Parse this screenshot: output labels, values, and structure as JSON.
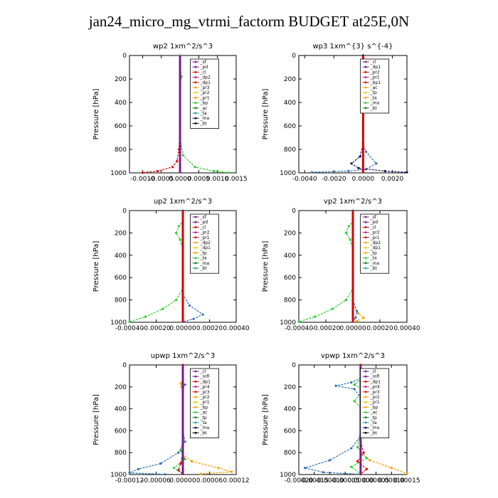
{
  "title": "jan24_micro_mg_vtrmi_factorm  BUDGET at25E,0N",
  "colors": {
    "red": "#dd0000",
    "purple": "#7a1a8c",
    "orange": "#f5a000",
    "yellow": "#e8d000",
    "green": "#2ecc2e",
    "darkgreen": "#1a7a1a",
    "blue": "#2a6fb8",
    "navy": "#10105a",
    "teal": "#1a9a9a",
    "cyan": "#18d8f0",
    "magenta": "#c01890",
    "black": "#000000"
  },
  "chart_data": [
    {
      "type": "line",
      "title": "wp2   1xm^2/s^3",
      "ylabel": "Pressure  [hPa]",
      "ylim": [
        1000,
        0
      ],
      "yticks": [
        "0",
        "200",
        "400",
        "600",
        "800",
        "1000"
      ],
      "xlim": [
        -0.00135,
        0.0015
      ],
      "xticks": [
        "-0.0010",
        "-0.0005",
        "0.0000",
        "0.0005",
        "0.0010",
        "0.0015"
      ],
      "legend": [
        "_sf",
        "_pd",
        "_cl",
        "_dp2",
        "_dp1",
        "_pr3",
        "_pr2",
        "_pr1",
        "_bp",
        "_ac",
        "_ta",
        "_ma",
        "_bt"
      ],
      "series": [
        {
          "name": "_pd",
          "color": "red",
          "values": [
            [
              0,
              0
            ],
            [
              0,
              600
            ],
            [
              -3e-05,
              800
            ],
            [
              -8e-05,
              900
            ],
            [
              -0.0002,
              950
            ],
            [
              -0.0006,
              985
            ],
            [
              -0.001,
              998
            ]
          ]
        },
        {
          "name": "_bp",
          "color": "green",
          "values": [
            [
              0,
              0
            ],
            [
              0,
              100
            ],
            [
              4e-05,
              180
            ],
            [
              0,
              260
            ],
            [
              0,
              700
            ],
            [
              8e-05,
              850
            ],
            [
              0.0004,
              950
            ],
            [
              0.0009,
              985
            ],
            [
              0.0013,
              998
            ]
          ]
        },
        {
          "name": "_cl",
          "color": "purple",
          "values": [
            [
              0,
              0
            ],
            [
              0,
              1000
            ]
          ]
        }
      ]
    },
    {
      "type": "line",
      "title": "wp3   1xm^{3} s^{-4}",
      "ylabel": "Pressure  [hPa]",
      "ylim": [
        1000,
        0
      ],
      "yticks": [
        "0",
        "200",
        "400",
        "600",
        "800",
        "1000"
      ],
      "xlim": [
        -0.0044,
        0.003
      ],
      "xticks": [
        "-0.0040",
        "-0.0020",
        "0.0000",
        "0.0020"
      ],
      "legend": [
        "_cl",
        "_dp1",
        "_pr2",
        "_pr1",
        "_bp1",
        "_ac",
        "_tp",
        "_ta",
        "_ma",
        "_bt"
      ],
      "series": [
        {
          "name": "_ac",
          "color": "blue",
          "values": [
            [
              0,
              0
            ],
            [
              0,
              750
            ],
            [
              0.0002,
              820
            ],
            [
              0.0009,
              920
            ],
            [
              0.0002,
              970
            ],
            [
              -0.001,
              985
            ],
            [
              -0.0035,
              995
            ]
          ]
        },
        {
          "name": "_tp",
          "color": "navy",
          "values": [
            [
              0,
              0
            ],
            [
              0,
              750
            ],
            [
              -0.0002,
              860
            ],
            [
              -0.0008,
              920
            ],
            [
              -0.0003,
              960
            ],
            [
              0.0015,
              985
            ],
            [
              0.003,
              995
            ]
          ]
        },
        {
          "name": "_cl",
          "color": "red",
          "values": [
            [
              0,
              0
            ],
            [
              0,
              1000
            ]
          ]
        }
      ]
    },
    {
      "type": "line",
      "title": "up2   1xm^2/s^3",
      "ylabel": "Pressure  [hPa]",
      "ylim": [
        1000,
        0
      ],
      "yticks": [
        "0",
        "200",
        "400",
        "600",
        "800",
        "1000"
      ],
      "xlim": [
        -0.0004,
        0.0004
      ],
      "xticks": [
        "-0.00040",
        "-0.00020",
        "0.00000",
        "0.00020",
        "0.00040"
      ],
      "legend": [
        "_sf",
        "_pd",
        "_cl",
        "_pr2",
        "_pr1",
        "_dp2",
        "_dp1",
        "_tp",
        "_ta",
        "_ma",
        "_bt"
      ],
      "series": [
        {
          "name": "_dp1",
          "color": "green",
          "values": [
            [
              0,
              0
            ],
            [
              0,
              100
            ],
            [
              -3e-05,
              140
            ],
            [
              -5e-05,
              200
            ],
            [
              -2e-05,
              260
            ],
            [
              0,
              350
            ],
            [
              0,
              700
            ],
            [
              -5e-05,
              800
            ],
            [
              -0.00015,
              880
            ],
            [
              -0.00028,
              950
            ],
            [
              -0.0004,
              995
            ]
          ]
        },
        {
          "name": "_tp",
          "color": "blue",
          "values": [
            [
              0,
              0
            ],
            [
              0,
              750
            ],
            [
              5e-05,
              850
            ],
            [
              0.00015,
              930
            ],
            [
              8e-05,
              970
            ],
            [
              0,
              995
            ]
          ]
        },
        {
          "name": "_cl",
          "color": "red",
          "values": [
            [
              0,
              0
            ],
            [
              0,
              1000
            ]
          ]
        }
      ]
    },
    {
      "type": "line",
      "title": "vp2   1xm^2/s^3",
      "ylabel": "Pressure  [hPa]",
      "ylim": [
        1000,
        0
      ],
      "yticks": [
        "0",
        "200",
        "400",
        "600",
        "800",
        "1000"
      ],
      "xlim": [
        -0.0004,
        0.0004
      ],
      "xticks": [
        "-0.00040",
        "-0.00020",
        "0.00000",
        "0.00020",
        "0.00040"
      ],
      "legend": [
        "_sf",
        "_pd",
        "_cl",
        "_pr2",
        "_pr1",
        "_dp2",
        "_dp1",
        "_tp",
        "_ta",
        "_ma",
        "_bt"
      ],
      "series": [
        {
          "name": "_dp1",
          "color": "green",
          "values": [
            [
              0,
              0
            ],
            [
              0,
              100
            ],
            [
              -3e-05,
              140
            ],
            [
              -5e-05,
              200
            ],
            [
              -2e-05,
              260
            ],
            [
              0,
              350
            ],
            [
              0,
              700
            ],
            [
              -5e-05,
              800
            ],
            [
              -0.00015,
              880
            ],
            [
              -0.00028,
              950
            ],
            [
              -0.0004,
              995
            ]
          ]
        },
        {
          "name": "_pr2",
          "color": "orange",
          "values": [
            [
              0,
              0
            ],
            [
              0,
              850
            ],
            [
              4e-05,
              920
            ],
            [
              8e-05,
              960
            ],
            [
              3e-05,
              990
            ]
          ]
        },
        {
          "name": "_tp",
          "color": "blue",
          "values": [
            [
              0,
              0
            ],
            [
              0,
              800
            ],
            [
              3e-05,
              900
            ],
            [
              2e-05,
              960
            ],
            [
              0,
              995
            ]
          ]
        },
        {
          "name": "_cl",
          "color": "red",
          "values": [
            [
              0,
              0
            ],
            [
              0,
              1000
            ]
          ]
        }
      ]
    },
    {
      "type": "line",
      "title": "upwp   1xm^2/s^3",
      "ylabel": "Pressure  [hPa]",
      "ylim": [
        1000,
        0
      ],
      "yticks": [
        "0",
        "200",
        "400",
        "600",
        "800",
        "1000"
      ],
      "xlim": [
        -0.00012,
        0.00012
      ],
      "xticks": [
        "-0.00012",
        "-0.00006",
        "0.00000",
        "0.00006",
        "0.00012"
      ],
      "legend": [
        "_cl",
        "_mfl",
        "_dp1",
        "_pr4",
        "_pr3",
        "_pr2",
        "_pr1",
        "_bp",
        "_ac",
        "_tp",
        "_ta",
        "_ma",
        "_bt"
      ],
      "series": [
        {
          "name": "_pr2",
          "color": "orange",
          "values": [
            [
              0,
              0
            ],
            [
              0,
              140
            ],
            [
              -5e-06,
              170
            ],
            [
              -3e-06,
              200
            ],
            [
              0,
              250
            ],
            [
              0,
              820
            ],
            [
              2e-05,
              880
            ],
            [
              8e-05,
              940
            ],
            [
              0.00011,
              975
            ],
            [
              4e-05,
              995
            ]
          ]
        },
        {
          "name": "_ac",
          "color": "blue",
          "values": [
            [
              0,
              0
            ],
            [
              0,
              150
            ],
            [
              5e-06,
              180
            ],
            [
              0,
              220
            ],
            [
              0,
              600
            ],
            [
              5e-06,
              700
            ],
            [
              -1e-05,
              800
            ],
            [
              -5e-05,
              900
            ],
            [
              -0.0001,
              950
            ],
            [
              -0.00012,
              985
            ],
            [
              -4e-05,
              998
            ]
          ]
        },
        {
          "name": "_bp",
          "color": "green",
          "values": [
            [
              0,
              0
            ],
            [
              0,
              700
            ],
            [
              -5e-06,
              780
            ],
            [
              5e-06,
              860
            ],
            [
              -2e-05,
              940
            ],
            [
              0,
              995
            ]
          ]
        },
        {
          "name": "_dp1",
          "color": "red",
          "values": [
            [
              0,
              0
            ],
            [
              0,
              800
            ],
            [
              -5e-06,
              900
            ],
            [
              -1e-05,
              960
            ],
            [
              0,
              995
            ]
          ]
        },
        {
          "name": "_cl",
          "color": "purple",
          "values": [
            [
              0,
              0
            ],
            [
              0,
              1000
            ]
          ]
        }
      ]
    },
    {
      "type": "line",
      "title": "vpwp   1xm^2/s^3",
      "ylabel": "Pressure  [hPa]",
      "ylim": [
        1000,
        0
      ],
      "yticks": [
        "0",
        "200",
        "400",
        "600",
        "800",
        "1000"
      ],
      "xlim": [
        -0.0002,
        0.00015
      ],
      "xticks": [
        "-0.00020",
        "-0.00015",
        "-0.00010",
        "-0.00005",
        "0.00000",
        "0.00005",
        "0.00010",
        "0.00015"
      ],
      "legend": [
        "_cl",
        "_mfl",
        "_dp1",
        "_pr4",
        "_pr3",
        "_pr2",
        "_pr1",
        "_bp",
        "_ac",
        "_tp",
        "_ta",
        "_ma",
        "_bt"
      ],
      "series": [
        {
          "name": "_ac",
          "color": "blue",
          "values": [
            [
              0,
              0
            ],
            [
              0,
              120
            ],
            [
              -3e-05,
              160
            ],
            [
              -8e-05,
              190
            ],
            [
              -2e-05,
              220
            ],
            [
              0,
              300
            ],
            [
              0,
              650
            ],
            [
              -3e-05,
              760
            ],
            [
              -0.0001,
              870
            ],
            [
              -0.00018,
              940
            ],
            [
              -0.00012,
              980
            ],
            [
              0,
              998
            ]
          ]
        },
        {
          "name": "_pr2",
          "color": "orange",
          "values": [
            [
              0,
              0
            ],
            [
              0,
              140
            ],
            [
              2e-05,
              180
            ],
            [
              0,
              230
            ],
            [
              0,
              800
            ],
            [
              3e-05,
              870
            ],
            [
              0.0001,
              940
            ],
            [
              0.00015,
              990
            ]
          ]
        },
        {
          "name": "_bp",
          "color": "green",
          "values": [
            [
              0,
              0
            ],
            [
              0,
              130
            ],
            [
              -2e-05,
              180
            ],
            [
              1e-05,
              230
            ],
            [
              -2e-05,
              330
            ],
            [
              1e-05,
              420
            ],
            [
              0,
              600
            ],
            [
              -1e-05,
              750
            ],
            [
              2e-05,
              850
            ],
            [
              -3e-05,
              930
            ],
            [
              0,
              995
            ]
          ]
        },
        {
          "name": "_dp1",
          "color": "red",
          "values": [
            [
              0,
              0
            ],
            [
              0,
              700
            ],
            [
              1e-05,
              800
            ],
            [
              -1e-05,
              880
            ],
            [
              2e-05,
              950
            ],
            [
              0,
              995
            ]
          ]
        },
        {
          "name": "_cl",
          "color": "purple",
          "values": [
            [
              0,
              0
            ],
            [
              0,
              1000
            ]
          ]
        }
      ]
    }
  ]
}
